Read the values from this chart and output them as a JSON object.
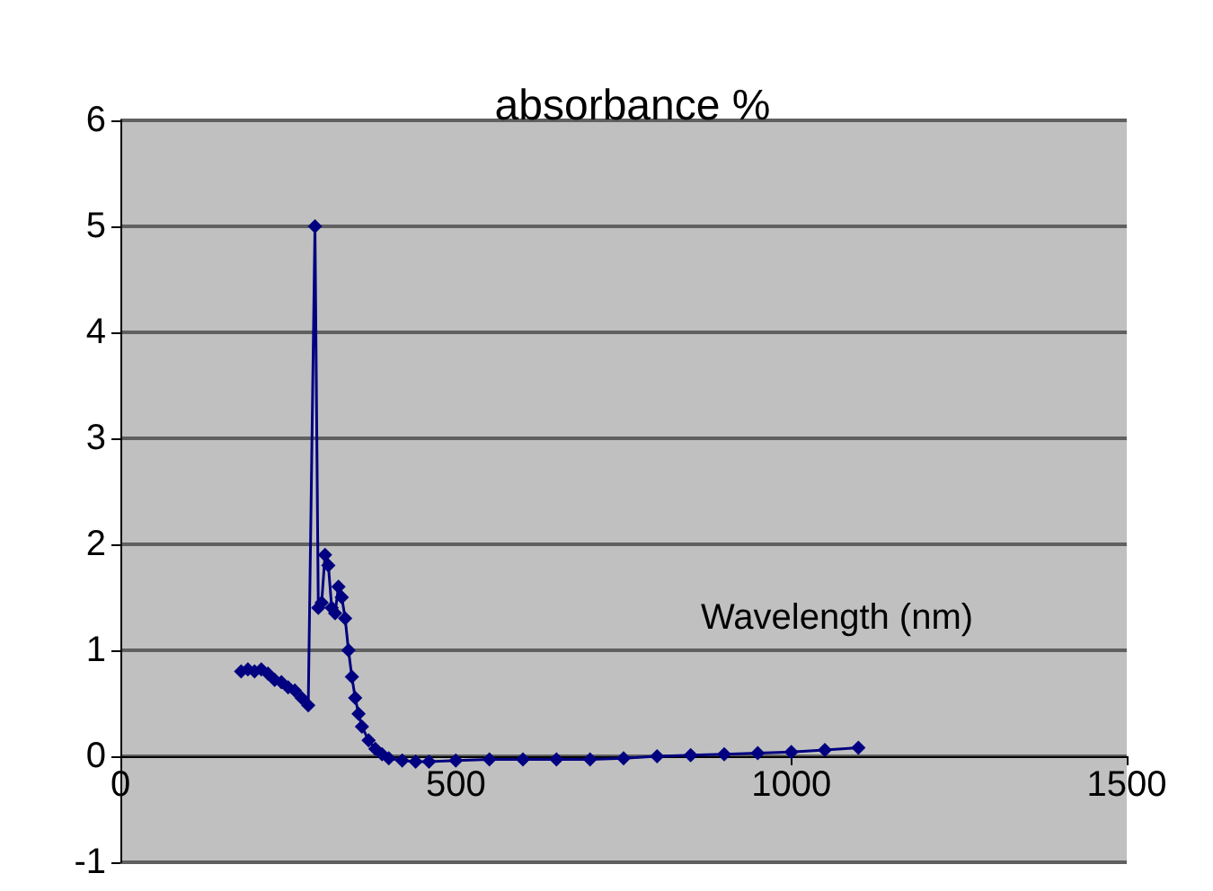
{
  "chart_data": {
    "type": "line",
    "title": "absorbance %",
    "xlabel": "Wavelength (nm)",
    "x": [
      180,
      190,
      200,
      210,
      220,
      230,
      240,
      250,
      260,
      270,
      280,
      290,
      295,
      300,
      305,
      310,
      315,
      320,
      325,
      330,
      335,
      340,
      345,
      350,
      355,
      360,
      370,
      380,
      390,
      400,
      420,
      440,
      460,
      500,
      550,
      600,
      650,
      700,
      750,
      800,
      850,
      900,
      950,
      1000,
      1050,
      1100
    ],
    "series": [
      {
        "color": "#000080",
        "values": [
          0.8,
          0.82,
          0.8,
          0.82,
          0.78,
          0.72,
          0.7,
          0.65,
          0.62,
          0.55,
          0.48,
          5.0,
          1.4,
          1.45,
          1.9,
          1.8,
          1.4,
          1.35,
          1.6,
          1.5,
          1.3,
          1.0,
          0.75,
          0.55,
          0.4,
          0.28,
          0.15,
          0.07,
          0.02,
          -0.02,
          -0.04,
          -0.05,
          -0.05,
          -0.04,
          -0.03,
          -0.03,
          -0.03,
          -0.03,
          -0.02,
          0.0,
          0.01,
          0.02,
          0.03,
          0.04,
          0.06,
          0.08
        ]
      }
    ],
    "xlim": [
      0,
      1500
    ],
    "xticks": [
      0,
      500,
      1000,
      1500
    ],
    "ylim": [
      -1,
      6
    ],
    "yticks": [
      -1,
      0,
      1,
      2,
      3,
      4,
      5,
      6
    ],
    "grid": "y",
    "marker": "diamond",
    "line_style": "solid"
  }
}
